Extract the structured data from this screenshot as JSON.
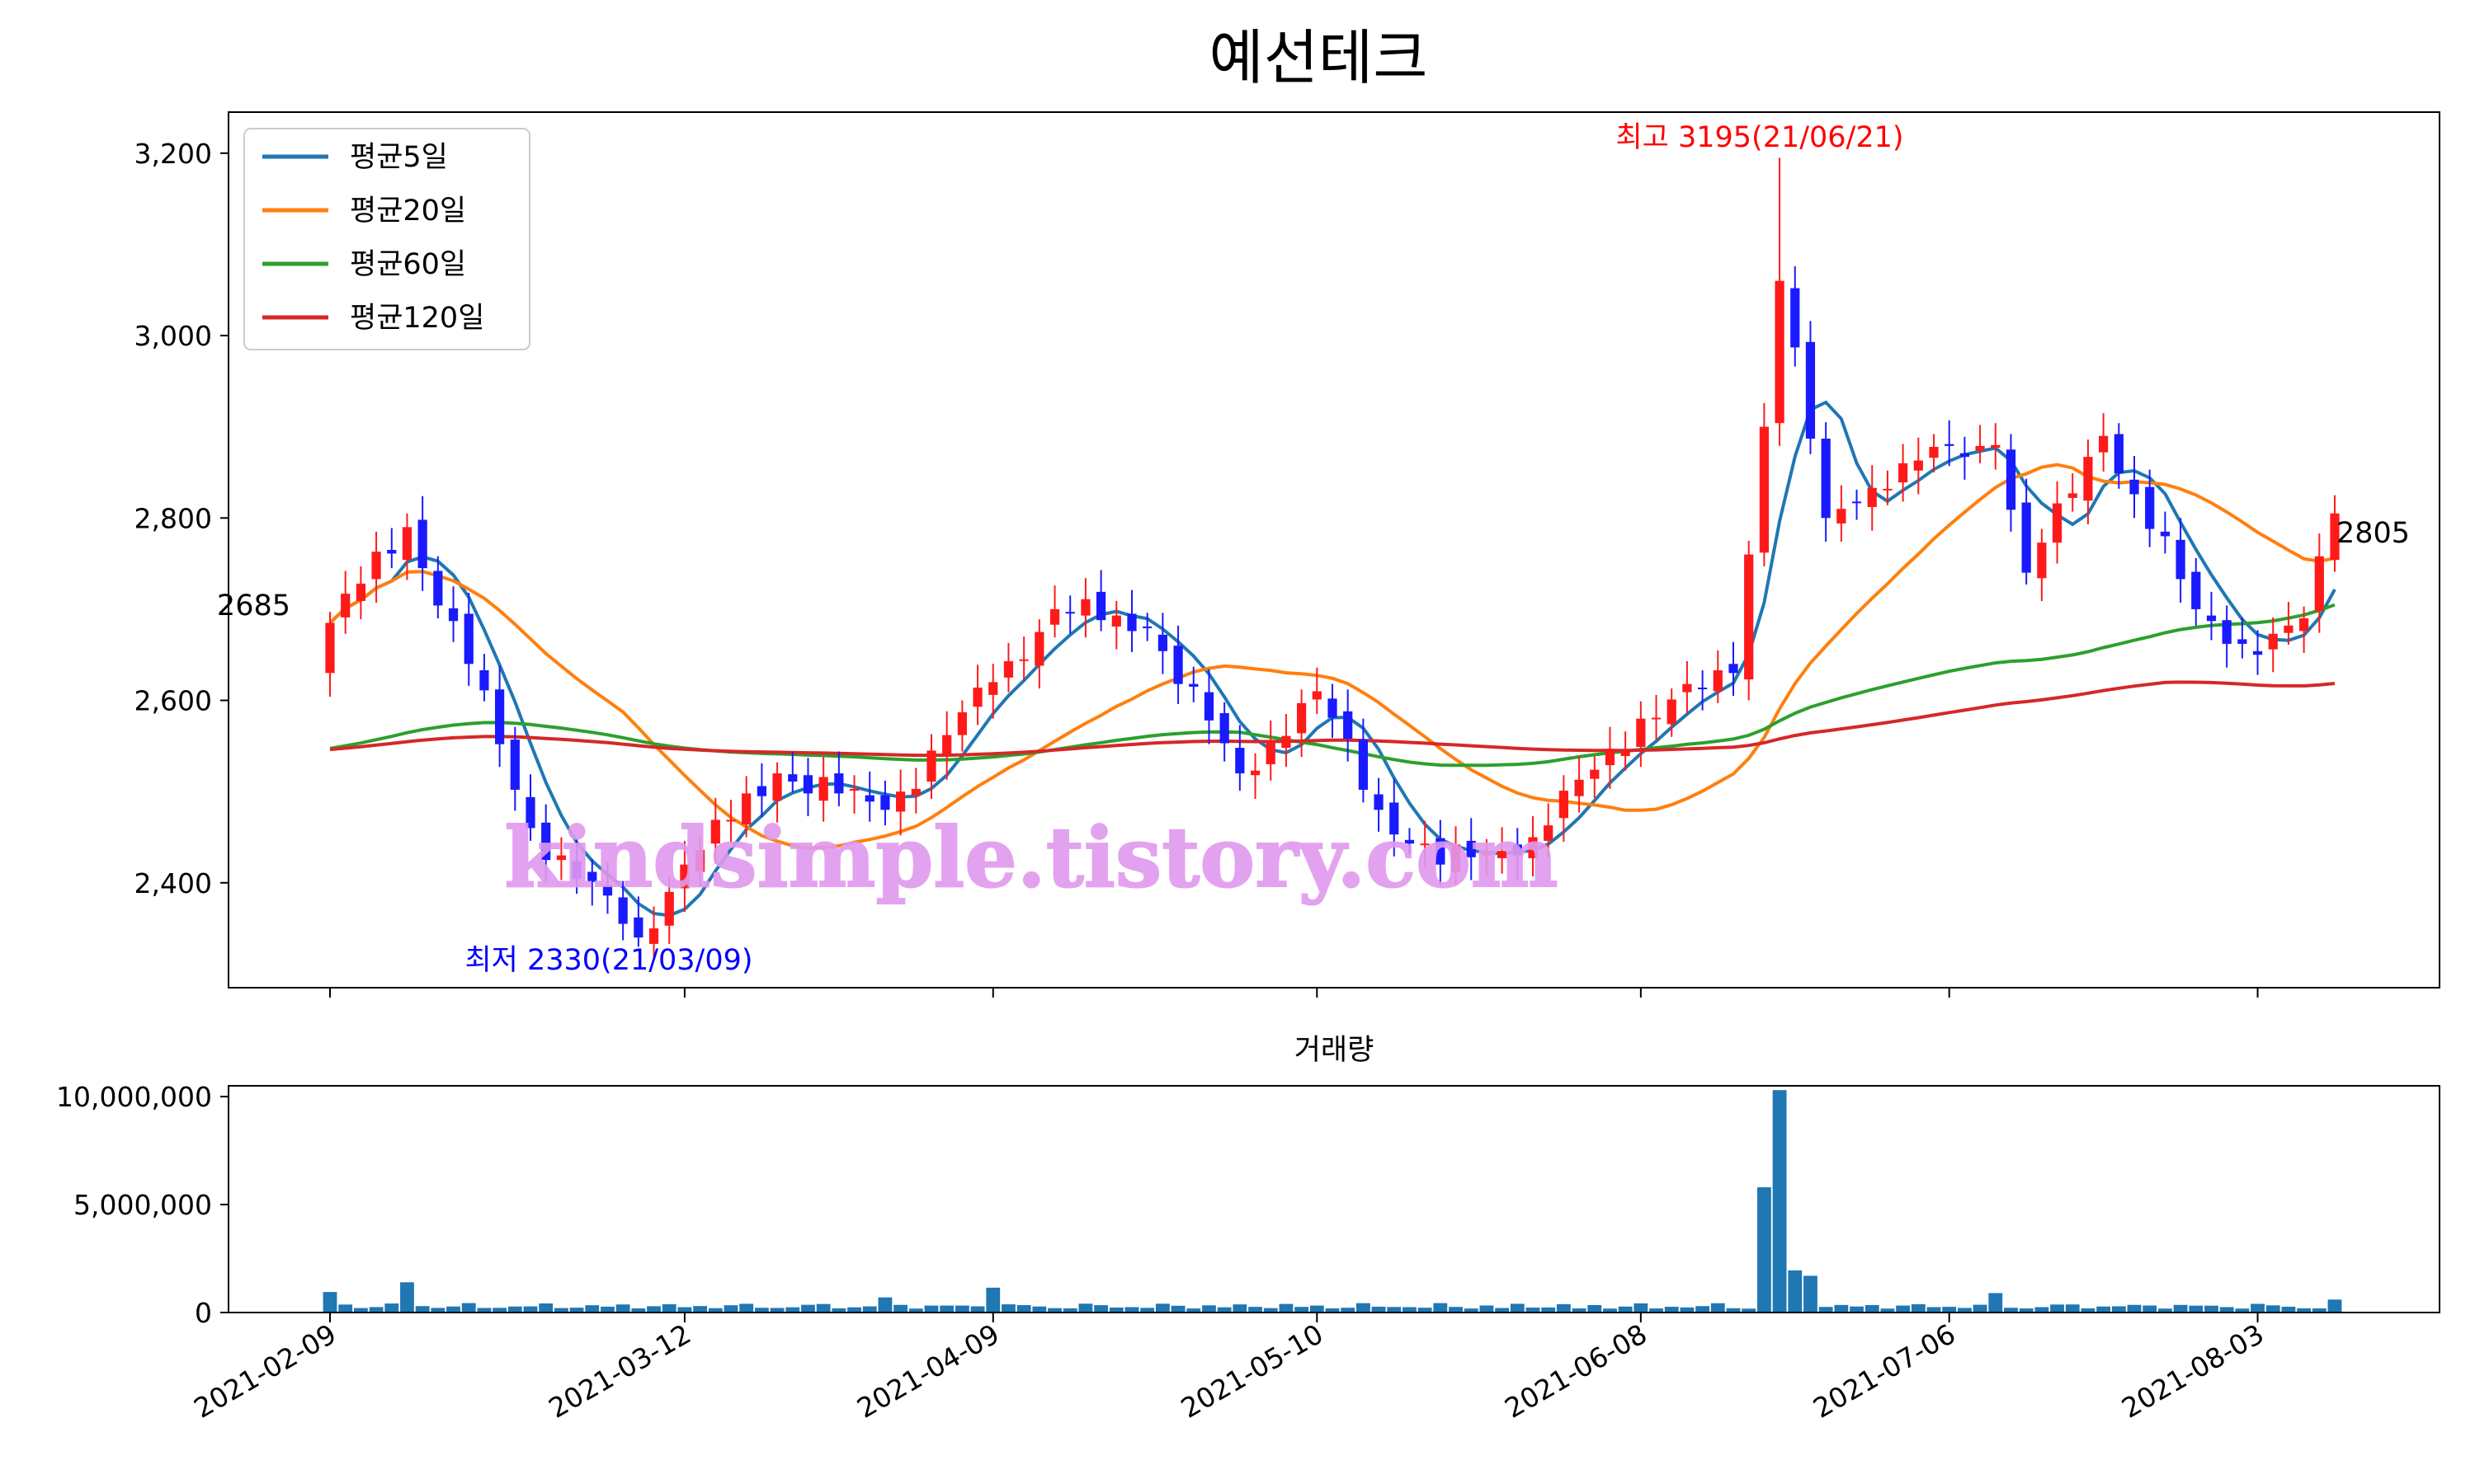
{
  "chart_data": [
    {
      "type": "candlestick",
      "title": "예선테크",
      "xlabel": "",
      "ylabel": "",
      "ylim": [
        2285,
        3245
      ],
      "yticks": [
        2400,
        2600,
        2800,
        3000,
        3200
      ],
      "ytick_labels": [
        "2,400",
        "2,600",
        "2,800",
        "3,000",
        "3,200"
      ],
      "xticks": [
        "2021-02-09",
        "2021-03-12",
        "2021-04-09",
        "2021-05-10",
        "2021-06-08",
        "2021-07-06",
        "2021-08-03"
      ],
      "grid": false,
      "legend_position": "top-left",
      "legend": [
        "평균5일",
        "평균20일",
        "평균60일",
        "평균120일"
      ],
      "colors": {
        "up": "#ff1a1a",
        "down": "#1a1aff",
        "ma5": "#1f77b4",
        "ma20": "#ff7f0e",
        "ma60": "#2ca02c",
        "ma120": "#d62728"
      },
      "annotations": {
        "high": {
          "text": "최고 3195(21/06/21)",
          "date": "2021-06-21",
          "value": 3195,
          "color": "#ff0000"
        },
        "low": {
          "text": "최저 2330(21/03/09)",
          "date": "2021-03-09",
          "value": 2330,
          "color": "#0000ff"
        },
        "first": {
          "text": "2685",
          "value": 2685
        },
        "last": {
          "text": "2805",
          "value": 2805
        }
      },
      "watermark": "kindsimple.tistory.com",
      "key_points": [
        {
          "date": "2021-02-09",
          "close": 2685
        },
        {
          "date": "2021-02-16",
          "close": 2790
        },
        {
          "date": "2021-02-22",
          "close": 2640
        },
        {
          "date": "2021-02-26",
          "close": 2460
        },
        {
          "date": "2021-03-09",
          "close": 2340
        },
        {
          "date": "2021-03-12",
          "close": 2420
        },
        {
          "date": "2021-03-22",
          "close": 2520
        },
        {
          "date": "2021-03-31",
          "close": 2480
        },
        {
          "date": "2021-04-09",
          "close": 2620
        },
        {
          "date": "2021-04-15",
          "close": 2700
        },
        {
          "date": "2021-04-23",
          "close": 2680
        },
        {
          "date": "2021-05-03",
          "close": 2520
        },
        {
          "date": "2021-05-10",
          "close": 2610
        },
        {
          "date": "2021-05-14",
          "close": 2480
        },
        {
          "date": "2021-05-20",
          "close": 2420
        },
        {
          "date": "2021-05-28",
          "close": 2450
        },
        {
          "date": "2021-06-08",
          "close": 2580
        },
        {
          "date": "2021-06-16",
          "close": 2630
        },
        {
          "date": "2021-06-18",
          "close": 2900
        },
        {
          "date": "2021-06-21",
          "close": 3060
        },
        {
          "date": "2021-06-24",
          "close": 2800
        },
        {
          "date": "2021-07-01",
          "close": 2860
        },
        {
          "date": "2021-07-09",
          "close": 2880
        },
        {
          "date": "2021-07-13",
          "close": 2740
        },
        {
          "date": "2021-07-20",
          "close": 2890
        },
        {
          "date": "2021-07-28",
          "close": 2700
        },
        {
          "date": "2021-08-03",
          "close": 2650
        },
        {
          "date": "2021-08-06",
          "close": 2690
        },
        {
          "date": "2021-08-10",
          "close": 2805
        }
      ]
    },
    {
      "type": "bar",
      "title": "거래량",
      "ylim": [
        0,
        10500000
      ],
      "yticks": [
        0,
        5000000,
        10000000
      ],
      "ytick_labels": [
        "0",
        "5,000,000",
        "10,000,000"
      ],
      "color": "#1f77b4",
      "key_points": [
        {
          "date": "2021-02-09",
          "volume": 950000
        },
        {
          "date": "2021-02-16",
          "volume": 1400000
        },
        {
          "date": "2021-04-09",
          "volume": 1150000
        },
        {
          "date": "2021-03-31",
          "volume": 700000
        },
        {
          "date": "2021-06-18",
          "volume": 5800000
        },
        {
          "date": "2021-06-21",
          "volume": 10300000
        },
        {
          "date": "2021-06-22",
          "volume": 1950000
        },
        {
          "date": "2021-06-23",
          "volume": 1700000
        },
        {
          "date": "2021-07-09",
          "volume": 900000
        },
        {
          "date": "2021-08-10",
          "volume": 600000
        }
      ]
    }
  ]
}
